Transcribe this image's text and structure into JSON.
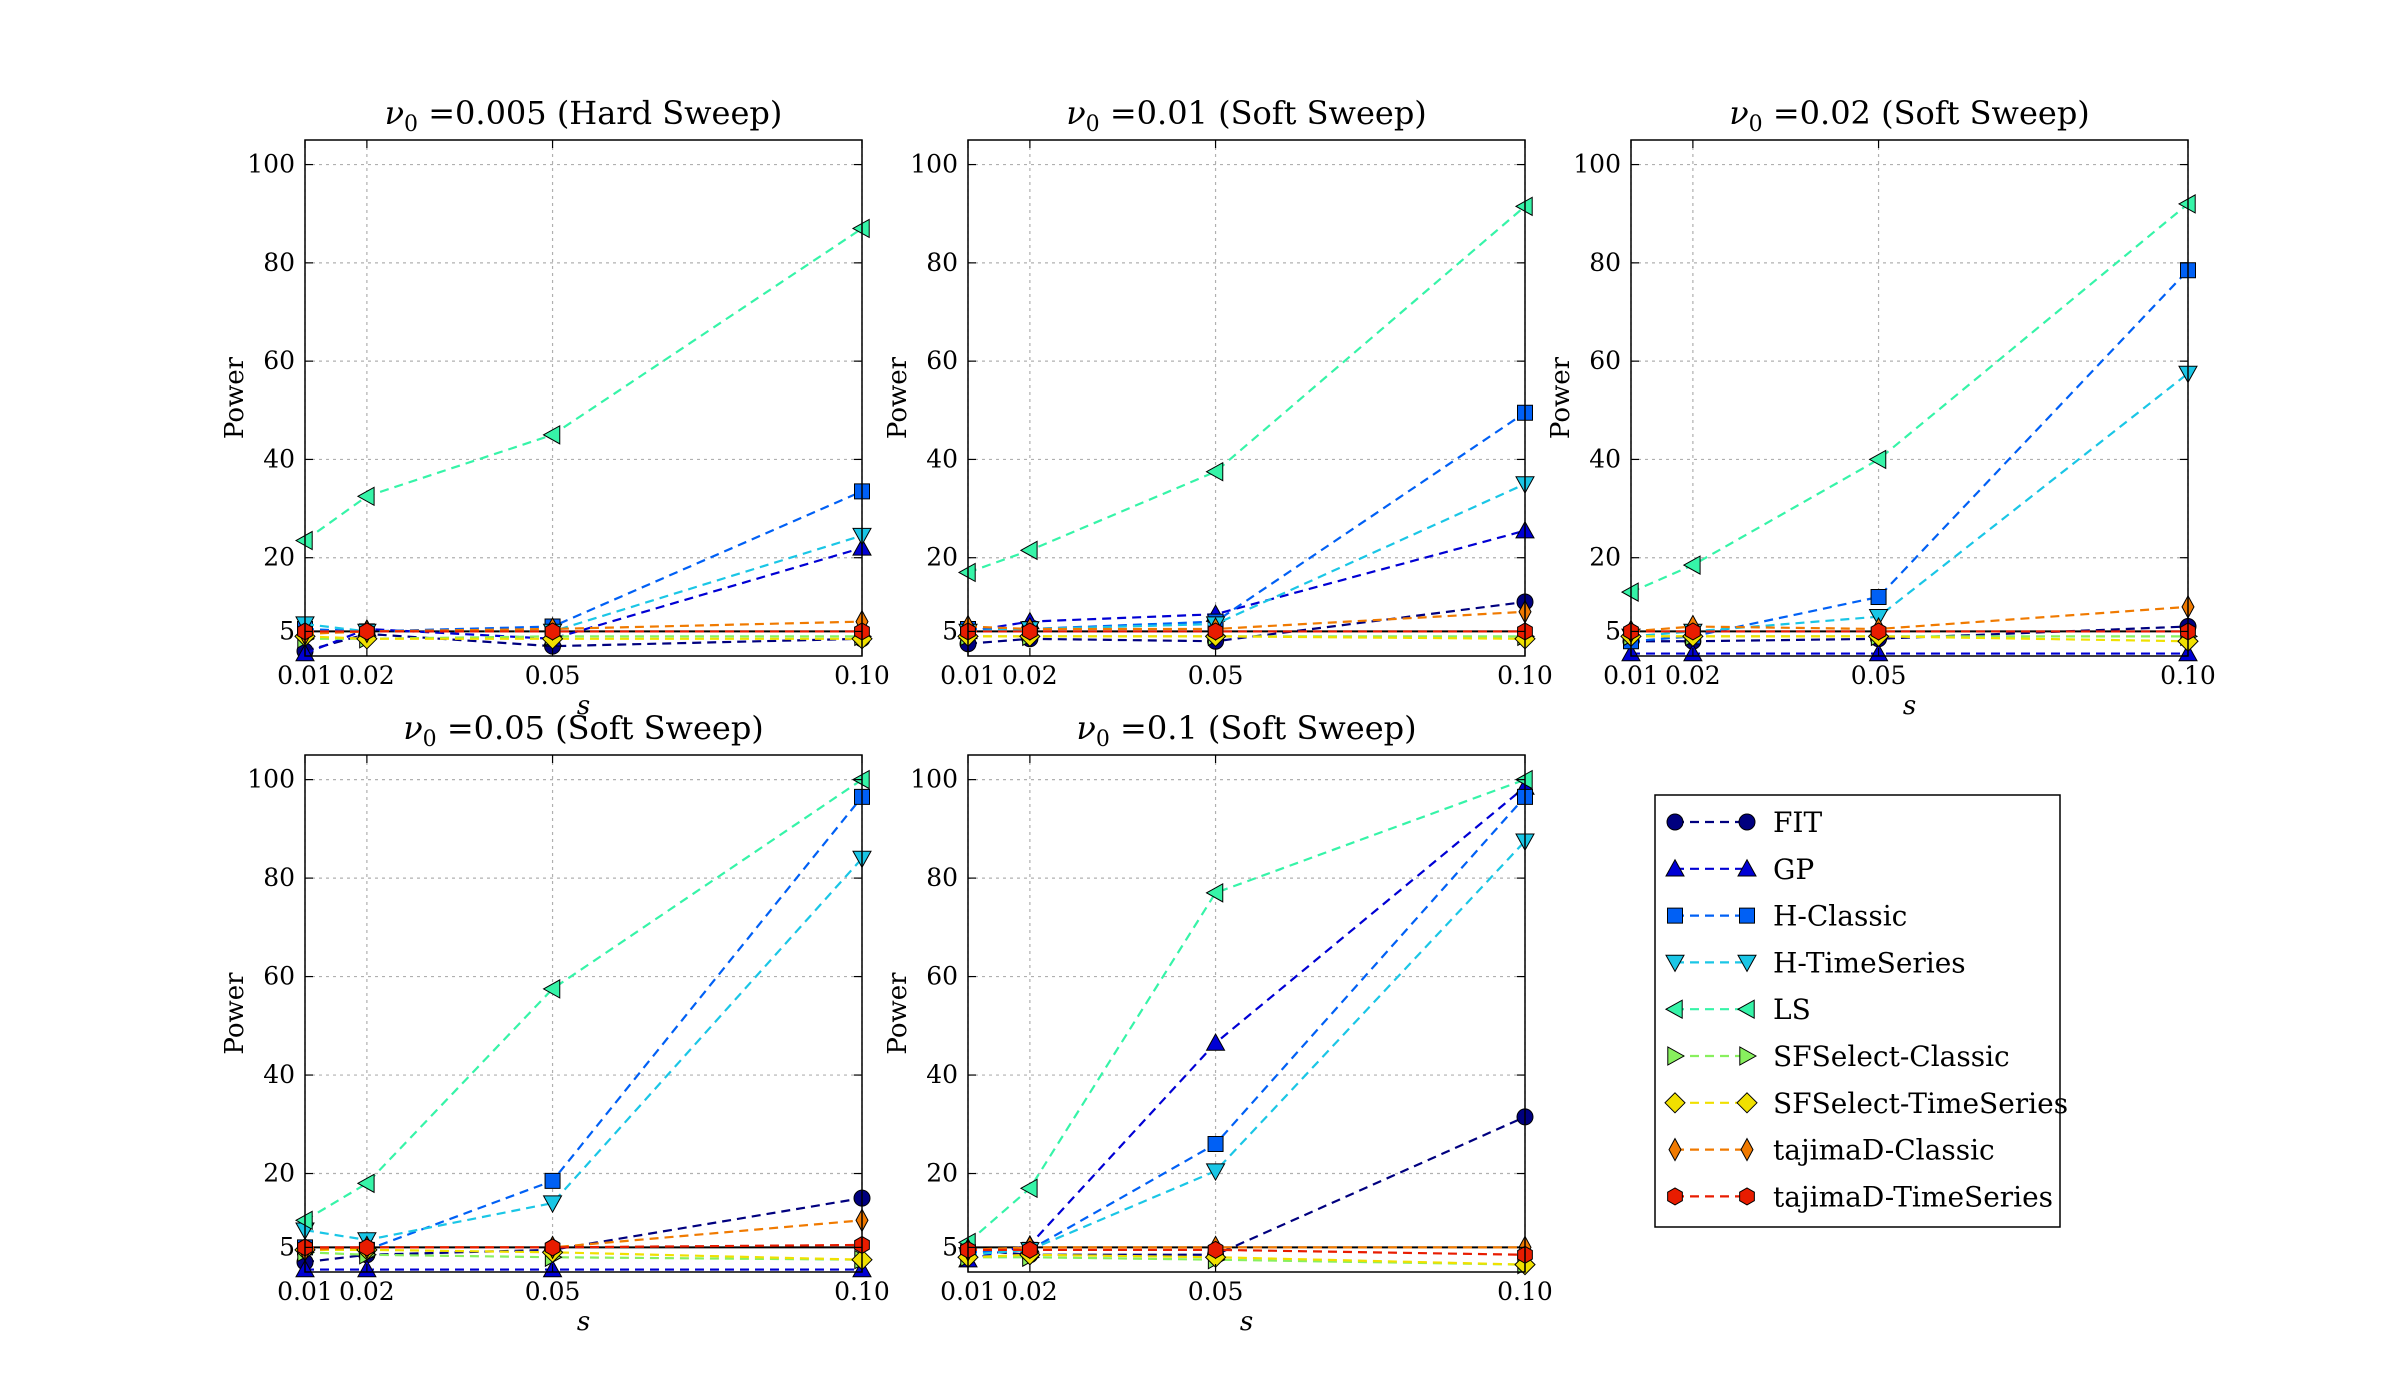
{
  "figure": {
    "colors": {
      "FIT": "#00007f",
      "GP": "#0000d4",
      "H-Classic": "#0060f5",
      "H-TimeSeries": "#1ac6e6",
      "LS": "#36f4a8",
      "SFSelect-Classic": "#88f05e",
      "SFSelect-TimeSeries": "#f0e000",
      "tajimaD-Classic": "#f07a00",
      "tajimaD-TimeSeries": "#e81c00"
    },
    "markers": {
      "FIT": "circle",
      "GP": "triangle-up",
      "H-Classic": "square",
      "H-TimeSeries": "triangle-down",
      "LS": "triangle-left",
      "SFSelect-Classic": "triangle-right",
      "SFSelect-TimeSeries": "diamond",
      "tajimaD-Classic": "thin-diamond",
      "tajimaD-TimeSeries": "hexagon"
    },
    "legend": {
      "placement": "lower-right",
      "entries": [
        "FIT",
        "GP",
        "H-Classic",
        "H-TimeSeries",
        "LS",
        "SFSelect-Classic",
        "SFSelect-TimeSeries",
        "tajimaD-Classic",
        "tajimaD-TimeSeries"
      ]
    }
  },
  "chart_data": [
    {
      "type": "line",
      "title_main": "0.005 (Hard Sweep)",
      "xlabel": "s",
      "ylabel": "Power",
      "x": [
        0.01,
        0.02,
        0.05,
        0.1
      ],
      "xticks": [
        "0.01",
        "0.02",
        "0.05",
        "0.10"
      ],
      "yticks": [
        "5",
        "20",
        "40",
        "60",
        "80",
        "100"
      ],
      "xlim": [
        0.01,
        0.1
      ],
      "ylim": [
        0,
        105
      ],
      "grid": true,
      "reference_line": 5,
      "series": [
        {
          "name": "FIT",
          "values": [
            1.0,
            4.5,
            2.0,
            3.5
          ]
        },
        {
          "name": "GP",
          "values": [
            0.5,
            5.5,
            3.5,
            22.0
          ]
        },
        {
          "name": "H-Classic",
          "values": [
            5.5,
            5.0,
            6.0,
            33.5
          ]
        },
        {
          "name": "H-TimeSeries",
          "values": [
            6.5,
            5.0,
            5.0,
            24.5
          ]
        },
        {
          "name": "LS",
          "values": [
            23.5,
            32.5,
            45.0,
            87.0
          ]
        },
        {
          "name": "SFSelect-Classic",
          "values": [
            3.5,
            3.5,
            4.0,
            4.0
          ]
        },
        {
          "name": "SFSelect-TimeSeries",
          "values": [
            4.0,
            3.5,
            3.5,
            3.5
          ]
        },
        {
          "name": "tajimaD-Classic",
          "values": [
            4.5,
            5.0,
            5.5,
            7.0
          ]
        },
        {
          "name": "tajimaD-TimeSeries",
          "values": [
            5.0,
            5.0,
            5.0,
            5.0
          ]
        }
      ]
    },
    {
      "type": "line",
      "title_main": "0.01 (Soft Sweep)",
      "xlabel": "",
      "ylabel": "Power",
      "x": [
        0.01,
        0.02,
        0.05,
        0.1
      ],
      "xticks": [
        "0.01",
        "0.02",
        "0.05",
        "0.10"
      ],
      "yticks": [
        "5",
        "20",
        "40",
        "60",
        "80",
        "100"
      ],
      "xlim": [
        0.01,
        0.1
      ],
      "ylim": [
        0,
        105
      ],
      "grid": true,
      "reference_line": 5,
      "series": [
        {
          "name": "FIT",
          "values": [
            2.5,
            3.5,
            3.0,
            11.0
          ]
        },
        {
          "name": "GP",
          "values": [
            5.0,
            7.0,
            8.5,
            25.5
          ]
        },
        {
          "name": "H-Classic",
          "values": [
            5.5,
            5.5,
            7.0,
            49.5
          ]
        },
        {
          "name": "H-TimeSeries",
          "values": [
            5.0,
            5.5,
            6.5,
            35.0
          ]
        },
        {
          "name": "LS",
          "values": [
            17.0,
            21.5,
            37.5,
            91.5
          ]
        },
        {
          "name": "SFSelect-Classic",
          "values": [
            4.0,
            4.0,
            4.0,
            4.0
          ]
        },
        {
          "name": "SFSelect-TimeSeries",
          "values": [
            4.0,
            4.0,
            4.0,
            3.5
          ]
        },
        {
          "name": "tajimaD-Classic",
          "values": [
            6.0,
            5.5,
            5.5,
            9.0
          ]
        },
        {
          "name": "tajimaD-TimeSeries",
          "values": [
            5.0,
            5.0,
            5.0,
            5.0
          ]
        }
      ]
    },
    {
      "type": "line",
      "title_main": "0.02 (Soft Sweep)",
      "xlabel": "s",
      "ylabel": "Power",
      "x": [
        0.01,
        0.02,
        0.05,
        0.1
      ],
      "xticks": [
        "0.01",
        "0.02",
        "0.05",
        "0.10"
      ],
      "yticks": [
        "5",
        "20",
        "40",
        "60",
        "80",
        "100"
      ],
      "xlim": [
        0.01,
        0.1
      ],
      "ylim": [
        0,
        105
      ],
      "grid": true,
      "reference_line": 5,
      "series": [
        {
          "name": "FIT",
          "values": [
            3.0,
            3.0,
            3.5,
            6.0
          ]
        },
        {
          "name": "GP",
          "values": [
            0.5,
            0.5,
            0.5,
            0.5
          ]
        },
        {
          "name": "H-Classic",
          "values": [
            3.0,
            4.0,
            12.0,
            78.5
          ]
        },
        {
          "name": "H-TimeSeries",
          "values": [
            4.0,
            5.0,
            8.0,
            57.5
          ]
        },
        {
          "name": "LS",
          "values": [
            13.0,
            18.5,
            40.0,
            92.0
          ]
        },
        {
          "name": "SFSelect-Classic",
          "values": [
            4.0,
            4.0,
            4.0,
            4.0
          ]
        },
        {
          "name": "SFSelect-TimeSeries",
          "values": [
            4.0,
            4.0,
            4.0,
            3.0
          ]
        },
        {
          "name": "tajimaD-Classic",
          "values": [
            5.0,
            6.0,
            5.5,
            10.0
          ]
        },
        {
          "name": "tajimaD-TimeSeries",
          "values": [
            5.0,
            5.0,
            5.0,
            5.0
          ]
        }
      ]
    },
    {
      "type": "line",
      "title_main": "0.05 (Soft Sweep)",
      "xlabel": "s",
      "ylabel": "Power",
      "x": [
        0.01,
        0.02,
        0.05,
        0.1
      ],
      "xticks": [
        "0.01",
        "0.02",
        "0.05",
        "0.10"
      ],
      "yticks": [
        "5",
        "20",
        "40",
        "60",
        "80",
        "100"
      ],
      "xlim": [
        0.01,
        0.1
      ],
      "ylim": [
        0,
        105
      ],
      "grid": true,
      "reference_line": 5,
      "series": [
        {
          "name": "FIT",
          "values": [
            2.0,
            3.5,
            4.5,
            15.0
          ]
        },
        {
          "name": "GP",
          "values": [
            0.5,
            0.5,
            0.5,
            0.5
          ]
        },
        {
          "name": "H-Classic",
          "values": [
            5.0,
            4.5,
            18.5,
            96.5
          ]
        },
        {
          "name": "H-TimeSeries",
          "values": [
            8.5,
            6.5,
            14.0,
            84.0
          ]
        },
        {
          "name": "LS",
          "values": [
            10.5,
            18.0,
            57.5,
            100.0
          ]
        },
        {
          "name": "SFSelect-Classic",
          "values": [
            4.0,
            3.5,
            3.0,
            2.5
          ]
        },
        {
          "name": "SFSelect-TimeSeries",
          "values": [
            4.5,
            4.5,
            4.0,
            2.5
          ]
        },
        {
          "name": "tajimaD-Classic",
          "values": [
            4.5,
            5.0,
            5.0,
            10.5
          ]
        },
        {
          "name": "tajimaD-TimeSeries",
          "values": [
            5.0,
            5.0,
            5.0,
            5.5
          ]
        }
      ]
    },
    {
      "type": "line",
      "title_main": "0.1 (Soft Sweep)",
      "xlabel": "s",
      "ylabel": "Power",
      "x": [
        0.01,
        0.02,
        0.05,
        0.1
      ],
      "xticks": [
        "0.01",
        "0.02",
        "0.05",
        "0.10"
      ],
      "yticks": [
        "5",
        "20",
        "40",
        "60",
        "80",
        "100"
      ],
      "xlim": [
        0.01,
        0.1
      ],
      "ylim": [
        0,
        105
      ],
      "grid": true,
      "reference_line": 5,
      "series": [
        {
          "name": "FIT",
          "values": [
            4.5,
            3.5,
            3.5,
            31.5
          ]
        },
        {
          "name": "GP",
          "values": [
            2.5,
            5.5,
            46.5,
            98.5
          ]
        },
        {
          "name": "H-Classic",
          "values": [
            4.0,
            4.5,
            26.0,
            96.5
          ]
        },
        {
          "name": "H-TimeSeries",
          "values": [
            3.5,
            4.5,
            20.5,
            87.5
          ]
        },
        {
          "name": "LS",
          "values": [
            6.0,
            17.0,
            77.0,
            100.0
          ]
        },
        {
          "name": "SFSelect-Classic",
          "values": [
            3.0,
            3.0,
            2.5,
            1.5
          ]
        },
        {
          "name": "SFSelect-TimeSeries",
          "values": [
            3.0,
            3.5,
            3.0,
            1.5
          ]
        },
        {
          "name": "tajimaD-Classic",
          "values": [
            4.5,
            5.0,
            5.0,
            5.0
          ]
        },
        {
          "name": "tajimaD-TimeSeries",
          "values": [
            4.5,
            4.5,
            4.5,
            3.5
          ]
        }
      ]
    }
  ]
}
